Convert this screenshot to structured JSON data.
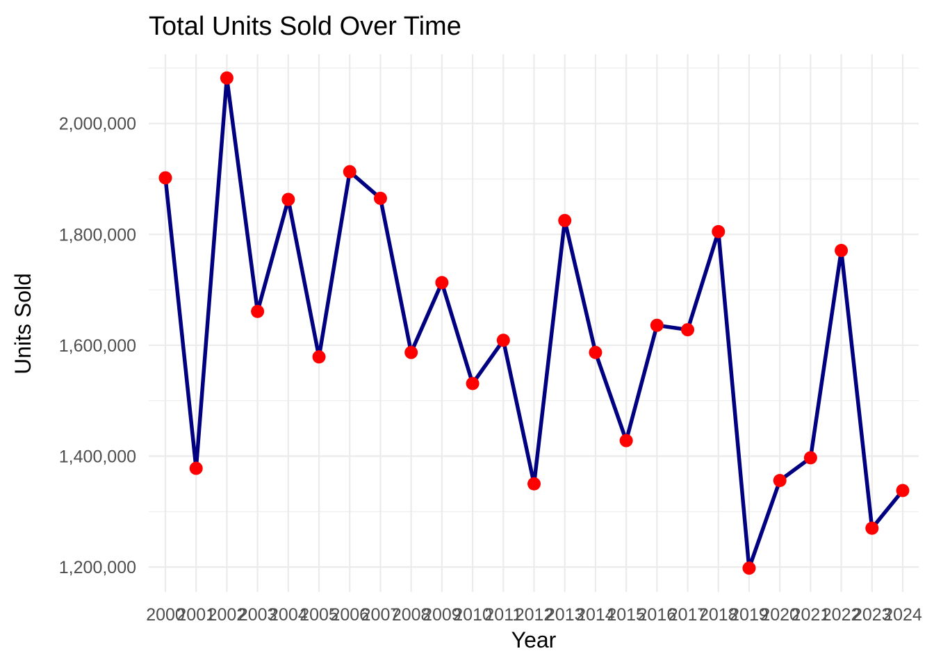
{
  "chart_data": {
    "type": "line",
    "title": "Total Units Sold Over Time",
    "xlabel": "Year",
    "ylabel": "Units Sold",
    "categories": [
      "2000",
      "2001",
      "2002",
      "2003",
      "2004",
      "2005",
      "2006",
      "2007",
      "2008",
      "2009",
      "2010",
      "2011",
      "2012",
      "2013",
      "2014",
      "2015",
      "2016",
      "2017",
      "2018",
      "2019",
      "2020",
      "2021",
      "2022",
      "2023",
      "2024"
    ],
    "values": [
      1902000,
      1378000,
      2082000,
      1661000,
      1863000,
      1579000,
      1913000,
      1865000,
      1587000,
      1713000,
      1531000,
      1609000,
      1350000,
      1825000,
      1587000,
      1428000,
      1636000,
      1628000,
      1805000,
      1198000,
      1356000,
      1397000,
      1771000,
      1270000,
      1338000
    ],
    "yticks": [
      1200000,
      1400000,
      1600000,
      1800000,
      2000000
    ],
    "ytick_labels": [
      "1,200,000",
      "1,400,000",
      "1,600,000",
      "1,800,000",
      "2,000,000"
    ],
    "ylim": [
      1155000,
      2125000
    ],
    "grid": true,
    "line_color": "#000080",
    "point_color": "#ff0000"
  }
}
